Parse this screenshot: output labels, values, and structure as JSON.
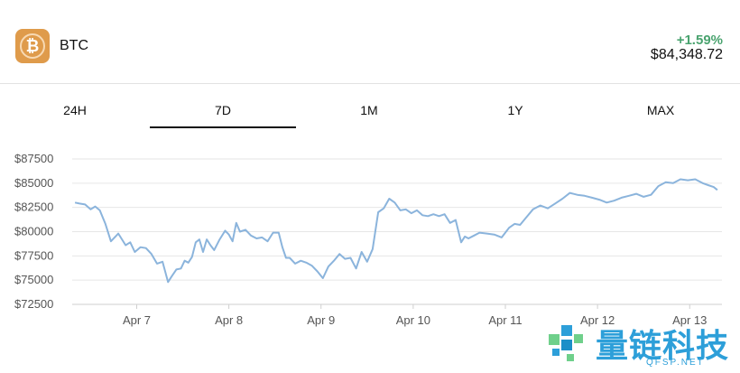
{
  "asset": {
    "icon": "bitcoin-icon",
    "icon_glyph": "₿",
    "name": "BTC",
    "change": "+1.59%",
    "price": "$84,348.72",
    "change_color": "#4aa36f",
    "brand_color": "#df9b4b"
  },
  "tabs": [
    {
      "label": "24H",
      "active": false
    },
    {
      "label": "7D",
      "active": true
    },
    {
      "label": "1M",
      "active": false
    },
    {
      "label": "1Y",
      "active": false
    },
    {
      "label": "MAX",
      "active": false
    }
  ],
  "chart_data": {
    "type": "line",
    "y_ticks": [
      "$87500",
      "$85000",
      "$82500",
      "$80000",
      "$77500",
      "$75000",
      "$72500"
    ],
    "ylim": [
      72500,
      87500
    ],
    "x_ticks": [
      "Apr 7",
      "Apr 8",
      "Apr 9",
      "Apr 10",
      "Apr 11",
      "Apr 12",
      "Apr 13"
    ],
    "x_tick_days": [
      7,
      8,
      9,
      10,
      11,
      12,
      13
    ],
    "xlim": [
      6.3,
      13.35
    ],
    "grid": true,
    "line_color": "#8bb4dc",
    "series": [
      {
        "x": [
          6.33,
          6.38,
          6.44,
          6.5,
          6.55,
          6.6,
          6.66,
          6.72,
          6.8,
          6.88,
          6.93,
          6.98,
          7.04,
          7.1,
          7.16,
          7.22,
          7.28,
          7.34,
          7.38,
          7.43,
          7.48,
          7.52,
          7.56,
          7.6,
          7.64,
          7.68,
          7.72,
          7.76,
          7.8,
          7.84,
          7.9,
          7.96,
          8.0,
          8.04,
          8.08,
          8.12,
          8.18,
          8.24,
          8.3,
          8.36,
          8.42,
          8.48,
          8.54,
          8.58,
          8.62,
          8.66,
          8.72,
          8.78,
          8.84,
          8.9,
          8.96,
          9.02,
          9.08,
          9.14,
          9.2,
          9.26,
          9.32,
          9.38,
          9.44,
          9.5,
          9.56,
          9.62,
          9.68,
          9.74,
          9.8,
          9.86,
          9.92,
          9.98,
          10.04,
          10.1,
          10.16,
          10.22,
          10.28,
          10.34,
          10.4,
          10.46,
          10.52,
          10.56,
          10.6,
          10.66,
          10.72,
          10.8,
          10.88,
          10.96,
          11.04,
          11.1,
          11.16,
          11.22,
          11.3,
          11.38,
          11.46,
          11.54,
          11.62,
          11.7,
          11.78,
          11.86,
          11.94,
          12.02,
          12.1,
          12.18,
          12.26,
          12.34,
          12.42,
          12.5,
          12.58,
          12.66,
          12.74,
          12.82,
          12.9,
          12.98,
          13.06,
          13.14,
          13.2,
          13.26,
          13.3
        ],
        "y": [
          83000,
          82900,
          82800,
          82300,
          82600,
          82200,
          80800,
          79000,
          79800,
          78600,
          78900,
          77900,
          78400,
          78300,
          77700,
          76700,
          76900,
          74800,
          75400,
          76100,
          76200,
          77000,
          76800,
          77400,
          78900,
          79200,
          77900,
          79200,
          78600,
          78100,
          79200,
          80100,
          79700,
          79000,
          80900,
          80000,
          80200,
          79600,
          79300,
          79400,
          79000,
          79900,
          79900,
          78400,
          77300,
          77300,
          76700,
          77000,
          76800,
          76500,
          75900,
          75200,
          76400,
          77000,
          77700,
          77200,
          77300,
          76200,
          77900,
          76900,
          78200,
          82000,
          82400,
          83400,
          83000,
          82200,
          82300,
          81900,
          82200,
          81700,
          81600,
          81800,
          81600,
          81800,
          80900,
          81200,
          78900,
          79500,
          79300,
          79600,
          79900,
          79800,
          79700,
          79400,
          80400,
          80800,
          80700,
          81400,
          82300,
          82700,
          82400,
          82900,
          83400,
          84000,
          83800,
          83700,
          83500,
          83300,
          83000,
          83200,
          83500,
          83700,
          83900,
          83600,
          83800,
          84700,
          85100,
          85000,
          85400,
          85300,
          85400,
          85000,
          84800,
          84600,
          84300
        ]
      }
    ]
  },
  "watermark": {
    "text": "量链科技",
    "sub": "QFSP.NET"
  }
}
